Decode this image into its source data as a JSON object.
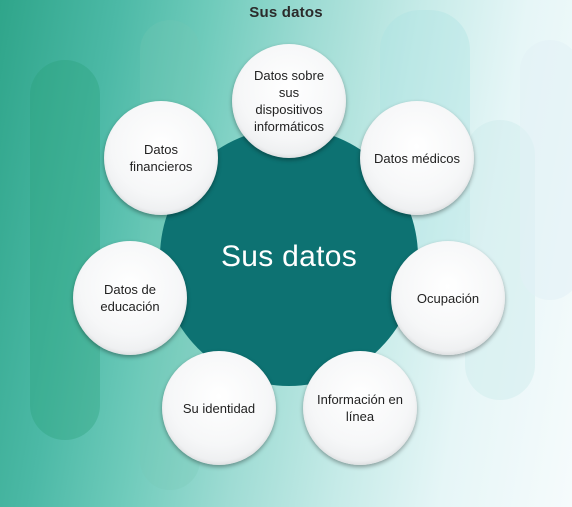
{
  "title": "Sus datos",
  "center": {
    "label": "Sus datos",
    "color": "#0d7272"
  },
  "nodes": [
    {
      "label": "Datos sobre sus dispositivos informáticos"
    },
    {
      "label": "Datos médicos"
    },
    {
      "label": "Ocupación"
    },
    {
      "label": "Información en línea"
    },
    {
      "label": "Su identidad"
    },
    {
      "label": "Datos de educación"
    },
    {
      "label": "Datos financieros"
    }
  ]
}
